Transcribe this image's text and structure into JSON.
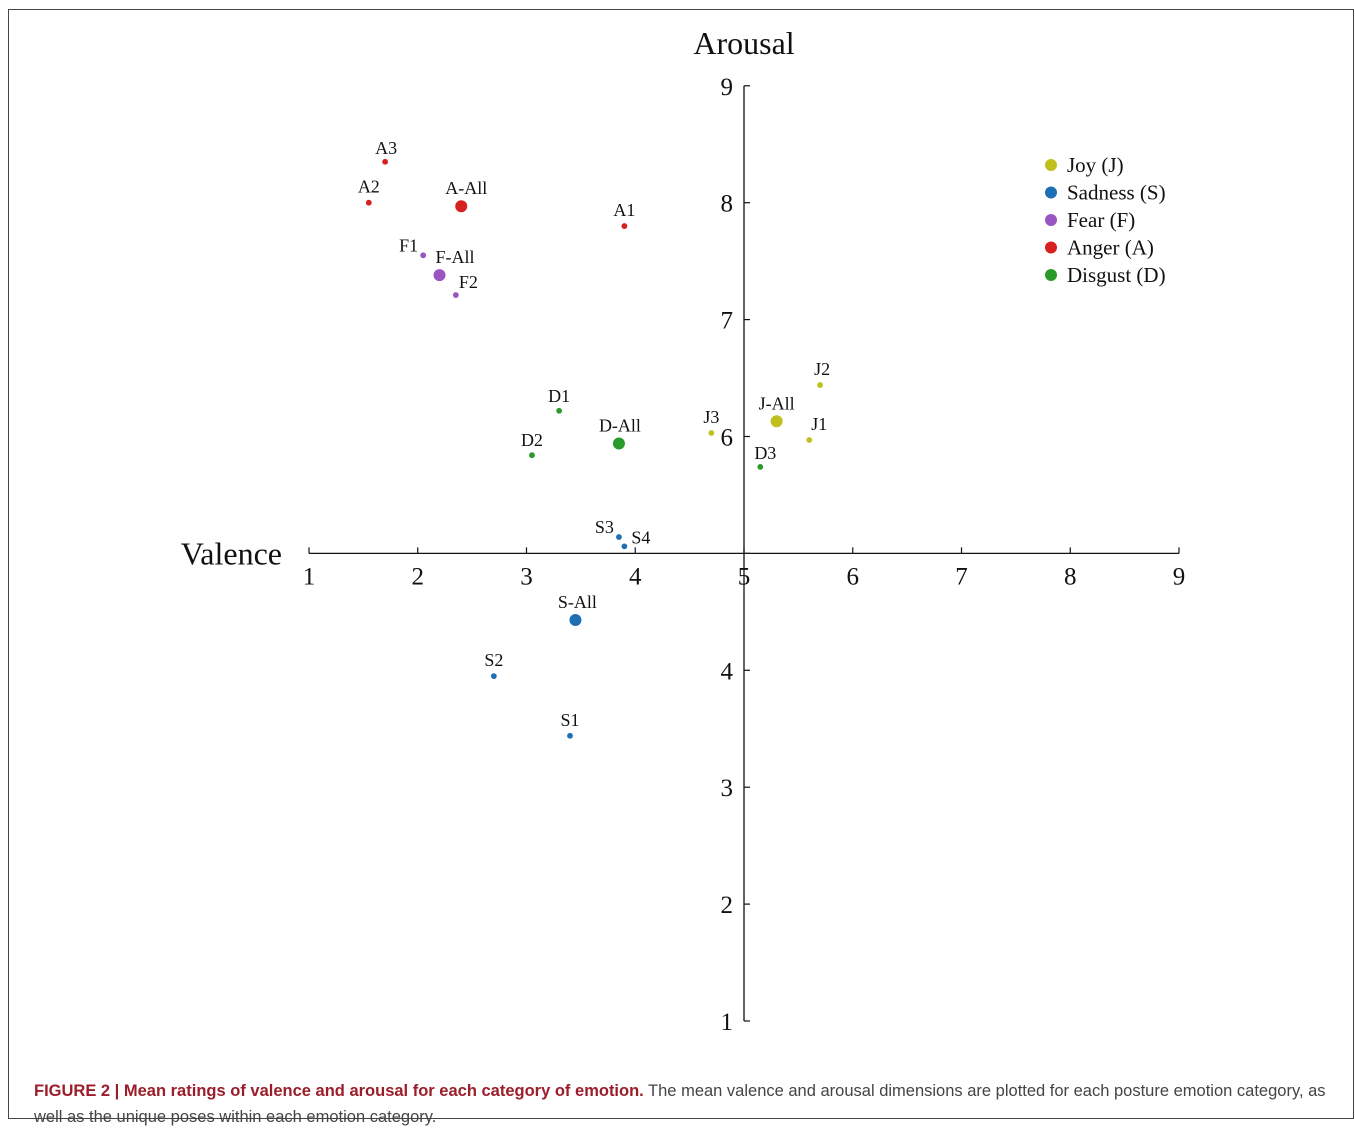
{
  "chart_data": {
    "type": "scatter",
    "xlabel": "Valence",
    "ylabel": "Arousal",
    "xlim": [
      1,
      9
    ],
    "ylim": [
      1,
      9
    ],
    "x_ticks": [
      1,
      2,
      3,
      4,
      5,
      6,
      7,
      8,
      9
    ],
    "y_ticks": [
      1,
      2,
      3,
      4,
      5,
      6,
      7,
      8,
      9
    ],
    "grid": false,
    "axes_cross_at": [
      5,
      5
    ],
    "legend_position": "top-right",
    "series": [
      {
        "name": "Joy (J)",
        "color": "#c0c01c",
        "points": [
          {
            "label": "J1",
            "x": 5.6,
            "y": 5.97,
            "size": "small"
          },
          {
            "label": "J2",
            "x": 5.7,
            "y": 6.44,
            "size": "small"
          },
          {
            "label": "J3",
            "x": 4.7,
            "y": 6.03,
            "size": "small"
          },
          {
            "label": "J-All",
            "x": 5.3,
            "y": 6.13,
            "size": "large"
          }
        ]
      },
      {
        "name": "Sadness (S)",
        "color": "#1f6fb4",
        "points": [
          {
            "label": "S1",
            "x": 3.4,
            "y": 3.44,
            "size": "small"
          },
          {
            "label": "S2",
            "x": 2.7,
            "y": 3.95,
            "size": "small"
          },
          {
            "label": "S3",
            "x": 3.85,
            "y": 5.14,
            "size": "small"
          },
          {
            "label": "S4",
            "x": 3.9,
            "y": 5.06,
            "size": "small"
          },
          {
            "label": "S-All",
            "x": 3.45,
            "y": 4.43,
            "size": "large"
          }
        ]
      },
      {
        "name": "Fear (F)",
        "color": "#9a55c2",
        "points": [
          {
            "label": "F1",
            "x": 2.05,
            "y": 7.55,
            "size": "small"
          },
          {
            "label": "F2",
            "x": 2.35,
            "y": 7.21,
            "size": "small"
          },
          {
            "label": "F-All",
            "x": 2.2,
            "y": 7.38,
            "size": "large"
          }
        ]
      },
      {
        "name": "Anger (A)",
        "color": "#d92020",
        "points": [
          {
            "label": "A1",
            "x": 3.9,
            "y": 7.8,
            "size": "small"
          },
          {
            "label": "A2",
            "x": 1.55,
            "y": 8.0,
            "size": "small"
          },
          {
            "label": "A3",
            "x": 1.7,
            "y": 8.35,
            "size": "small"
          },
          {
            "label": "A-All",
            "x": 2.4,
            "y": 7.97,
            "size": "large"
          }
        ]
      },
      {
        "name": "Disgust (D)",
        "color": "#2a9a2a",
        "points": [
          {
            "label": "D1",
            "x": 3.3,
            "y": 6.22,
            "size": "small"
          },
          {
            "label": "D2",
            "x": 3.05,
            "y": 5.84,
            "size": "small"
          },
          {
            "label": "D3",
            "x": 5.15,
            "y": 5.74,
            "size": "small"
          },
          {
            "label": "D-All",
            "x": 3.85,
            "y": 5.94,
            "size": "large"
          }
        ]
      }
    ]
  },
  "caption": {
    "lead": "FIGURE 2 | Mean ratings of valence and arousal for each category of emotion.",
    "body": " The mean valence and arousal dimensions are plotted for each posture emotion category, as well as the unique poses within each emotion category."
  }
}
